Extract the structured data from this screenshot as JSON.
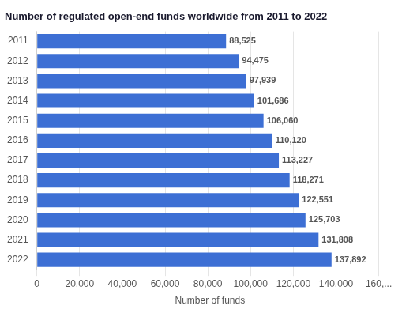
{
  "chart_data": {
    "type": "bar",
    "orientation": "horizontal",
    "title": "Number of regulated open-end funds worldwide from 2011 to 2022",
    "xlabel": "Number of funds",
    "categories": [
      "2011",
      "2012",
      "2013",
      "2014",
      "2015",
      "2016",
      "2017",
      "2018",
      "2019",
      "2020",
      "2021",
      "2022"
    ],
    "values": [
      88525,
      94475,
      97939,
      101686,
      106060,
      110120,
      113227,
      118271,
      122551,
      125703,
      131808,
      137892
    ],
    "value_labels": [
      "88,525",
      "94,475",
      "97,939",
      "101,686",
      "106,060",
      "110,120",
      "113,227",
      "118,271",
      "122,551",
      "125,703",
      "131,808",
      "137,892"
    ],
    "data_labels": true,
    "color": "#3d6fd4",
    "xlim": [
      0,
      162000
    ],
    "xticks": [
      0,
      {
        "value": 20000,
        "label": "20,000"
      },
      {
        "value": 40000,
        "label": "40,000"
      },
      {
        "value": 60000,
        "label": "60,000"
      },
      {
        "value": 80000,
        "label": "80,000"
      },
      {
        "value": 100000,
        "label": "100,000"
      },
      {
        "value": 120000,
        "label": "120,000"
      },
      {
        "value": 140000,
        "label": "140,000"
      },
      {
        "value": 160000,
        "label": "160,..."
      }
    ],
    "grid": true
  }
}
